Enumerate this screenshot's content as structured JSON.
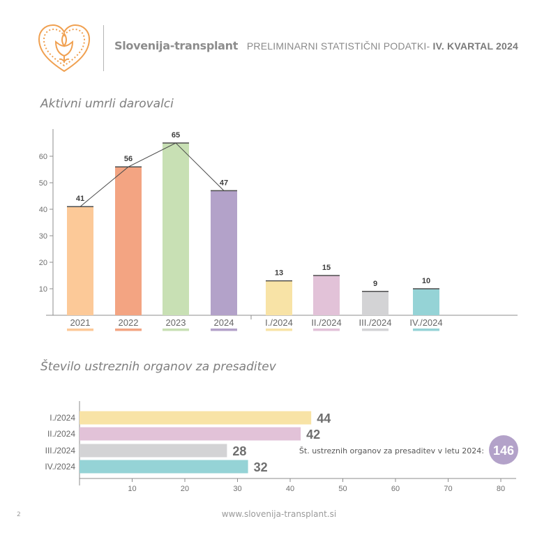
{
  "header": {
    "brand": "Slovenija-transplant",
    "report_prefix": "PRELIMINARNI STATISTIČNI PODATKI- ",
    "report_period": "IV. KVARTAL 2024"
  },
  "footer": {
    "url": "www.slovenija-transplant.si",
    "page": "2"
  },
  "chart_data": [
    {
      "type": "bar",
      "title": "Aktivni umrli darovalci",
      "categories": [
        "2021",
        "2022",
        "2023",
        "2024",
        "I./2024",
        "II./2024",
        "III./2024",
        "IV./2024"
      ],
      "values": [
        41,
        56,
        65,
        47,
        13,
        15,
        9,
        10
      ],
      "colors": [
        "#fcc998",
        "#f3a482",
        "#c8e0b4",
        "#b3a2c9",
        "#f8e3a6",
        "#e2c2d8",
        "#d3d3d5",
        "#95d3d6"
      ],
      "trend_line_categories": [
        "2021",
        "2022",
        "2023",
        "2024"
      ],
      "ylim": [
        0,
        70
      ],
      "yticks": [
        10,
        20,
        30,
        40,
        50,
        60
      ],
      "grid": false
    },
    {
      "type": "bar",
      "orientation": "horizontal",
      "title": "Število ustreznih organov za presaditev",
      "categories": [
        "I./2024",
        "II./2024",
        "III./2024",
        "IV./2024"
      ],
      "values": [
        44,
        42,
        28,
        32
      ],
      "colors": [
        "#f8e3a6",
        "#e2c2d8",
        "#d3d3d5",
        "#95d3d6"
      ],
      "xlim": [
        0,
        82
      ],
      "xticks": [
        10,
        20,
        30,
        40,
        50,
        60,
        70,
        80
      ],
      "total_label": "Št. ustreznih organov za presaditev v letu 2024:",
      "total_value": "146",
      "total_color": "#b3a2c9",
      "grid": false
    }
  ]
}
